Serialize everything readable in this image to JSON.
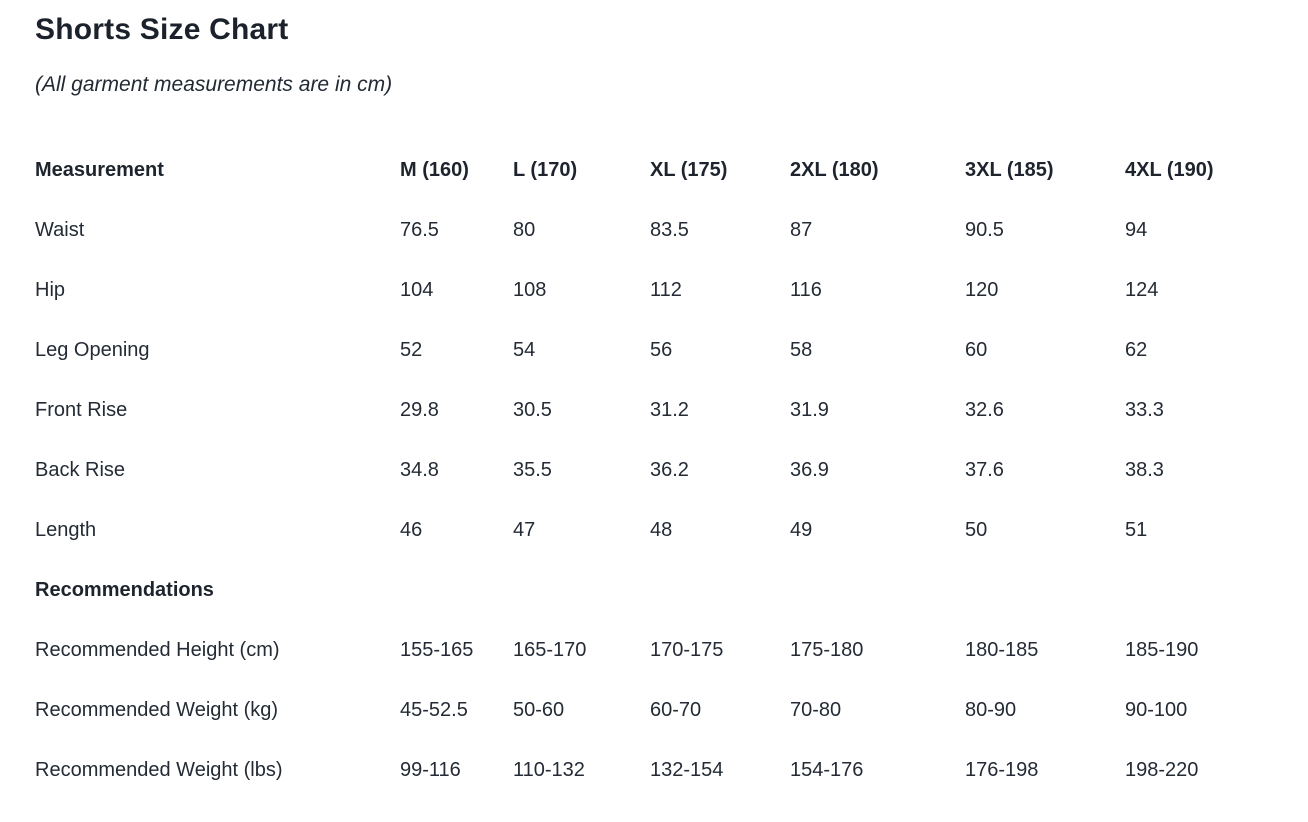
{
  "title": "Shorts Size Chart",
  "subtitle": "(All garment measurements are in cm)",
  "colors": {
    "background": "#ffffff",
    "heading_text": "#1c222b",
    "body_text": "#242b35"
  },
  "table": {
    "columns": [
      "Measurement",
      "M (160)",
      "L (170)",
      "XL (175)",
      "2XL (180)",
      "3XL (185)",
      "4XL (190)"
    ],
    "measurement_rows": [
      {
        "label": "Waist",
        "values": [
          "76.5",
          "80",
          "83.5",
          "87",
          "90.5",
          "94"
        ]
      },
      {
        "label": "Hip",
        "values": [
          "104",
          "108",
          "112",
          "116",
          "120",
          "124"
        ]
      },
      {
        "label": "Leg Opening",
        "values": [
          "52",
          "54",
          "56",
          "58",
          "60",
          "62"
        ]
      },
      {
        "label": "Front Rise",
        "values": [
          "29.8",
          "30.5",
          "31.2",
          "31.9",
          "32.6",
          "33.3"
        ]
      },
      {
        "label": "Back Rise",
        "values": [
          "34.8",
          "35.5",
          "36.2",
          "36.9",
          "37.6",
          "38.3"
        ]
      },
      {
        "label": "Length",
        "values": [
          "46",
          "47",
          "48",
          "49",
          "50",
          "51"
        ]
      }
    ],
    "section_header": "Recommendations",
    "recommendation_rows": [
      {
        "label": "Recommended Height (cm)",
        "values": [
          "155-165",
          "165-170",
          "170-175",
          "175-180",
          "180-185",
          "185-190"
        ]
      },
      {
        "label": "Recommended Weight (kg)",
        "values": [
          "45-52.5",
          "50-60",
          "60-70",
          "70-80",
          "80-90",
          "90-100"
        ]
      },
      {
        "label": "Recommended Weight (lbs)",
        "values": [
          "99-116",
          "110-132",
          "132-154",
          "154-176",
          "176-198",
          "198-220"
        ]
      }
    ]
  },
  "chart_data": {
    "type": "table",
    "title": "Shorts Size Chart",
    "subtitle": "(All garment measurements are in cm)",
    "columns": [
      "Measurement",
      "M (160)",
      "L (170)",
      "XL (175)",
      "2XL (180)",
      "3XL (185)",
      "4XL (190)"
    ],
    "rows": [
      [
        "Waist",
        "76.5",
        "80",
        "83.5",
        "87",
        "90.5",
        "94"
      ],
      [
        "Hip",
        "104",
        "108",
        "112",
        "116",
        "120",
        "124"
      ],
      [
        "Leg Opening",
        "52",
        "54",
        "56",
        "58",
        "60",
        "62"
      ],
      [
        "Front Rise",
        "29.8",
        "30.5",
        "31.2",
        "31.9",
        "32.6",
        "33.3"
      ],
      [
        "Back Rise",
        "34.8",
        "35.5",
        "36.2",
        "36.9",
        "37.6",
        "38.3"
      ],
      [
        "Length",
        "46",
        "47",
        "48",
        "49",
        "50",
        "51"
      ],
      [
        "Recommendations",
        "",
        "",
        "",
        "",
        "",
        ""
      ],
      [
        "Recommended Height (cm)",
        "155-165",
        "165-170",
        "170-175",
        "175-180",
        "180-185",
        "185-190"
      ],
      [
        "Recommended Weight (kg)",
        "45-52.5",
        "50-60",
        "60-70",
        "70-80",
        "80-90",
        "90-100"
      ],
      [
        "Recommended Weight (lbs)",
        "99-116",
        "110-132",
        "132-154",
        "154-176",
        "176-198",
        "198-220"
      ]
    ],
    "units": "cm",
    "grid": false,
    "legend": false
  }
}
